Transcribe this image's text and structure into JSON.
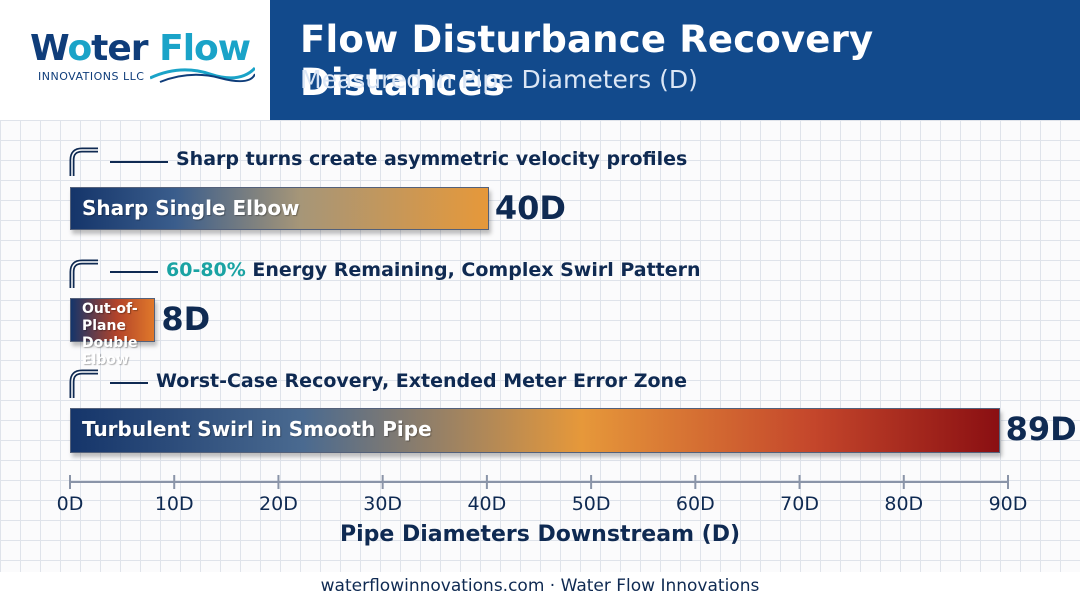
{
  "header": {
    "title": "Flow Disturbance Recovery Distances",
    "subtitle": "Measured in Pipe Diameters (D)"
  },
  "logo": {
    "word_a": "W",
    "word_b": "ter",
    "word_c": "Flow",
    "sub": "INNOVATIONS LLC"
  },
  "annotations": {
    "a1": "Sharp turns create asymmetric velocity profiles",
    "a2_highlight": "60-80%",
    "a2_rest": " Energy Remaining, Complex Swirl Pattern",
    "a3": "Worst-Case Recovery, Extended Meter Error Zone"
  },
  "chart_data": {
    "type": "bar",
    "orientation": "horizontal",
    "categories": [
      "Sharp Single Elbow",
      "Out-of-Plane Double Elbow",
      "Turbulent Swirl in Smooth Pipe"
    ],
    "values": [
      40,
      8,
      89
    ],
    "value_labels": [
      "40D",
      "8D",
      "89D"
    ],
    "xlabel": "Pipe Diameters Downstream (D)",
    "xlim": [
      0,
      90
    ],
    "ticks": [
      "0D",
      "10D",
      "20D",
      "30D",
      "40D",
      "50D",
      "60D",
      "70D",
      "80D",
      "90D"
    ],
    "grid": true
  },
  "footer": {
    "text": "waterflowinnovations.com · Water Flow Innovations"
  },
  "colors": {
    "navy": "#124a8c",
    "dark_text": "#0f2a52",
    "orange": "#e6983a",
    "red": "#8a0f12",
    "teal": "#1aa3a3"
  },
  "icons": [
    "pipe-elbow-icon"
  ]
}
